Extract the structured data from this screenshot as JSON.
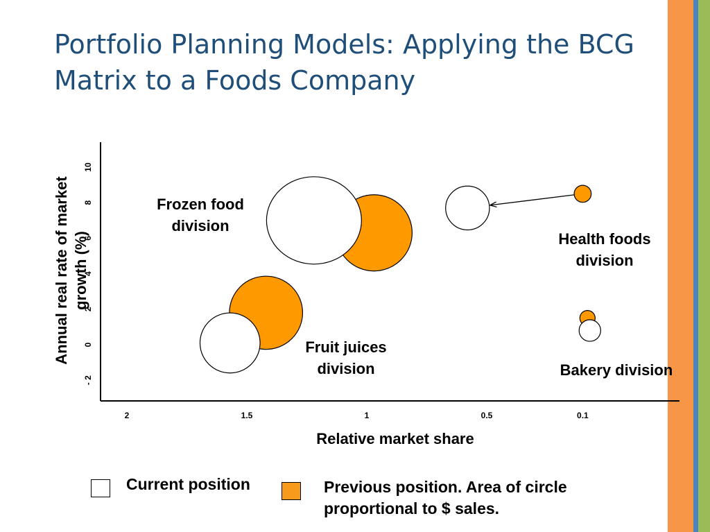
{
  "slide": {
    "title": "Portfolio Planning Models: Applying the BCG Matrix to a Foods Company"
  },
  "colors": {
    "title": "#1f4e79",
    "previous_fill": "#ff9900",
    "current_fill": "#ffffff",
    "stripe_orange": "#f79646",
    "stripe_blue": "#4f81bd",
    "stripe_green": "#9bbb59"
  },
  "chart_data": {
    "type": "scatter",
    "subtype": "bubble",
    "xlabel": "Relative market share",
    "ylabel": "Annual real rate of market growth (%)",
    "x_reversed": true,
    "xlim": [
      2.1,
      -0.25
    ],
    "ylim": [
      -3,
      11
    ],
    "xticks": [
      2,
      1.5,
      1,
      0.5,
      0.1
    ],
    "xtick_labels": [
      "2",
      "1.5",
      "1",
      "0.5",
      "0.1"
    ],
    "yticks": [
      -2,
      0,
      2,
      4,
      6,
      8,
      10
    ],
    "ytick_labels": [
      "- 2",
      "0",
      "2",
      "4",
      "6",
      "8",
      "10"
    ],
    "grid": false,
    "bubble_size_measure": "$ sales",
    "series": [
      {
        "name": "Previous position",
        "fill": "#ff9900",
        "points": [
          {
            "division": "Frozen food division",
            "x": 0.97,
            "y": 6.3,
            "size": 1.0
          },
          {
            "division": "Fruit juices division",
            "x": 1.42,
            "y": 1.8,
            "size": 0.92
          },
          {
            "division": "Health foods division",
            "x": 0.1,
            "y": 8.5,
            "size": 0.05
          },
          {
            "division": "Bakery division",
            "x": 0.08,
            "y": 1.5,
            "size": 0.04
          }
        ]
      },
      {
        "name": "Current position",
        "fill": "#ffffff",
        "points": [
          {
            "division": "Frozen food division",
            "x": 1.22,
            "y": 7.0,
            "size": 1.55
          },
          {
            "division": "Fruit juices division",
            "x": 1.57,
            "y": 0.1,
            "size": 0.62
          },
          {
            "division": "Health foods division",
            "x": 0.58,
            "y": 7.7,
            "size": 0.33
          },
          {
            "division": "Bakery division",
            "x": 0.07,
            "y": 0.8,
            "size": 0.08
          }
        ]
      }
    ],
    "arrows": [
      {
        "from": {
          "x": 0.1,
          "y": 8.5
        },
        "to": {
          "x": 0.58,
          "y": 7.7
        }
      }
    ],
    "annotations": [
      {
        "lines": [
          "Frozen food",
          "division"
        ]
      },
      {
        "lines": [
          "Health foods",
          "division"
        ]
      },
      {
        "lines": [
          "Fruit juices",
          "division"
        ]
      },
      {
        "lines": [
          "Bakery division"
        ]
      }
    ]
  },
  "legend": {
    "current": "Current position",
    "previous_line1": "Previous position. Area of circle",
    "previous_line2": "proportional to $ sales."
  }
}
